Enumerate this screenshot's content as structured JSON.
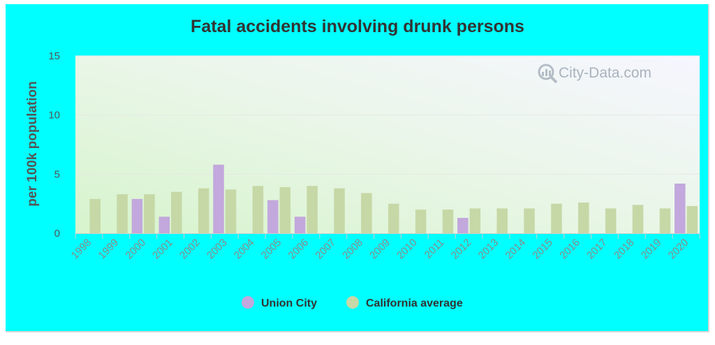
{
  "chart_data": {
    "type": "bar",
    "title": "Fatal accidents involving drunk persons",
    "ylabel": "per 100k population",
    "xlabel": "",
    "ylim": [
      0,
      15
    ],
    "yticks": [
      0,
      5,
      10,
      15
    ],
    "grid": true,
    "legend_position": "bottom-center",
    "categories": [
      "1998",
      "1999",
      "2000",
      "2001",
      "2002",
      "2003",
      "2004",
      "2005",
      "2006",
      "2007",
      "2008",
      "2009",
      "2010",
      "2011",
      "2012",
      "2013",
      "2014",
      "2015",
      "2016",
      "2017",
      "2018",
      "2019",
      "2020"
    ],
    "series": [
      {
        "name": "Union City",
        "color": "#c2a8dc",
        "values": [
          null,
          null,
          2.9,
          1.4,
          null,
          5.8,
          null,
          2.8,
          1.4,
          null,
          null,
          null,
          null,
          null,
          1.3,
          null,
          null,
          null,
          null,
          null,
          null,
          null,
          4.2
        ]
      },
      {
        "name": "California average",
        "color": "#c6d8a6",
        "values": [
          2.9,
          3.3,
          3.3,
          3.5,
          3.8,
          3.7,
          4.0,
          3.9,
          4.0,
          3.8,
          3.4,
          2.5,
          2.0,
          2.0,
          2.1,
          2.1,
          2.1,
          2.5,
          2.6,
          2.1,
          2.4,
          2.1,
          2.3
        ]
      }
    ]
  },
  "watermark": {
    "text": "City-Data.com",
    "icon": "magnifier-chart-icon"
  }
}
